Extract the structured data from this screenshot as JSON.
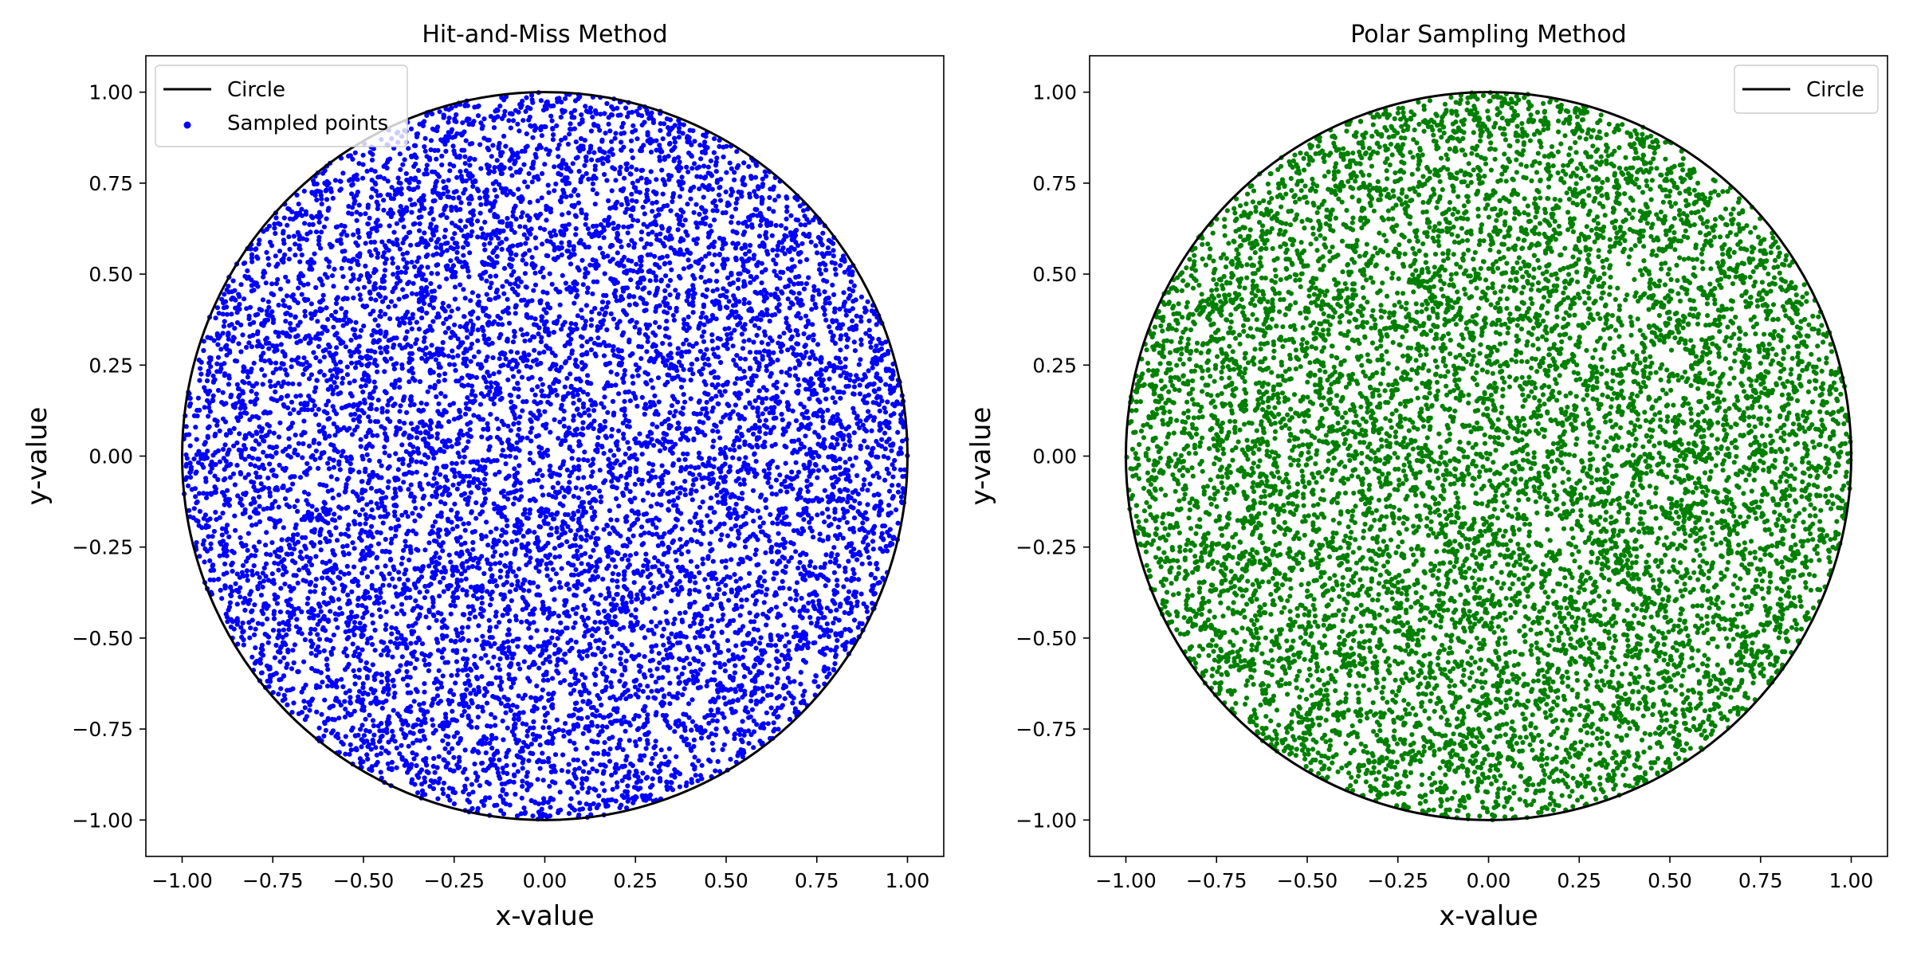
{
  "chart_data": [
    {
      "type": "scatter",
      "title": "Hit-and-Miss Method",
      "xlabel": "x-value",
      "ylabel": "y-value",
      "xlim": [
        -1.1,
        1.1
      ],
      "ylim": [
        -1.1,
        1.1
      ],
      "xticks": [
        -1.0,
        -0.75,
        -0.5,
        -0.25,
        0.0,
        0.25,
        0.5,
        0.75,
        1.0
      ],
      "yticks": [
        -1.0,
        -0.75,
        -0.5,
        -0.25,
        0.0,
        0.25,
        0.5,
        0.75,
        1.0
      ],
      "xtick_labels": [
        "−1.00",
        "−0.75",
        "−0.50",
        "−0.25",
        "0.00",
        "0.25",
        "0.50",
        "0.75",
        "1.00"
      ],
      "ytick_labels": [
        "−1.00",
        "−0.75",
        "−0.50",
        "−0.25",
        "0.00",
        "0.25",
        "0.50",
        "0.75",
        "1.00"
      ],
      "grid": false,
      "legend": {
        "location": "upper left",
        "entries": [
          {
            "label": "Circle",
            "kind": "line",
            "color": "#000000"
          },
          {
            "label": "Sampled points",
            "kind": "marker",
            "color": "#0000ff"
          }
        ]
      },
      "circle": {
        "name": "Circle",
        "center": [
          0,
          0
        ],
        "radius": 1.0,
        "color": "#000000"
      },
      "series": [
        {
          "name": "Sampled points",
          "type": "scatter",
          "color": "#0000ff",
          "distribution": "uniform within unit disk (x² + y² ≤ 1)",
          "approx_count": 10000
        }
      ]
    },
    {
      "type": "scatter",
      "title": "Polar Sampling Method",
      "xlabel": "x-value",
      "ylabel": "y-value",
      "xlim": [
        -1.1,
        1.1
      ],
      "ylim": [
        -1.1,
        1.1
      ],
      "xticks": [
        -1.0,
        -0.75,
        -0.5,
        -0.25,
        0.0,
        0.25,
        0.5,
        0.75,
        1.0
      ],
      "yticks": [
        -1.0,
        -0.75,
        -0.5,
        -0.25,
        0.0,
        0.25,
        0.5,
        0.75,
        1.0
      ],
      "xtick_labels": [
        "−1.00",
        "−0.75",
        "−0.50",
        "−0.25",
        "0.00",
        "0.25",
        "0.50",
        "0.75",
        "1.00"
      ],
      "ytick_labels": [
        "−1.00",
        "−0.75",
        "−0.50",
        "−0.25",
        "0.00",
        "0.25",
        "0.50",
        "0.75",
        "1.00"
      ],
      "grid": false,
      "legend": {
        "location": "upper right",
        "entries": [
          {
            "label": "Circle",
            "kind": "line",
            "color": "#000000"
          }
        ]
      },
      "circle": {
        "name": "Circle",
        "center": [
          0,
          0
        ],
        "radius": 1.0,
        "color": "#000000"
      },
      "series": [
        {
          "type": "scatter",
          "color": "#008000",
          "distribution": "uniform within unit disk (x² + y² ≤ 1)",
          "approx_count": 10000
        }
      ]
    }
  ]
}
